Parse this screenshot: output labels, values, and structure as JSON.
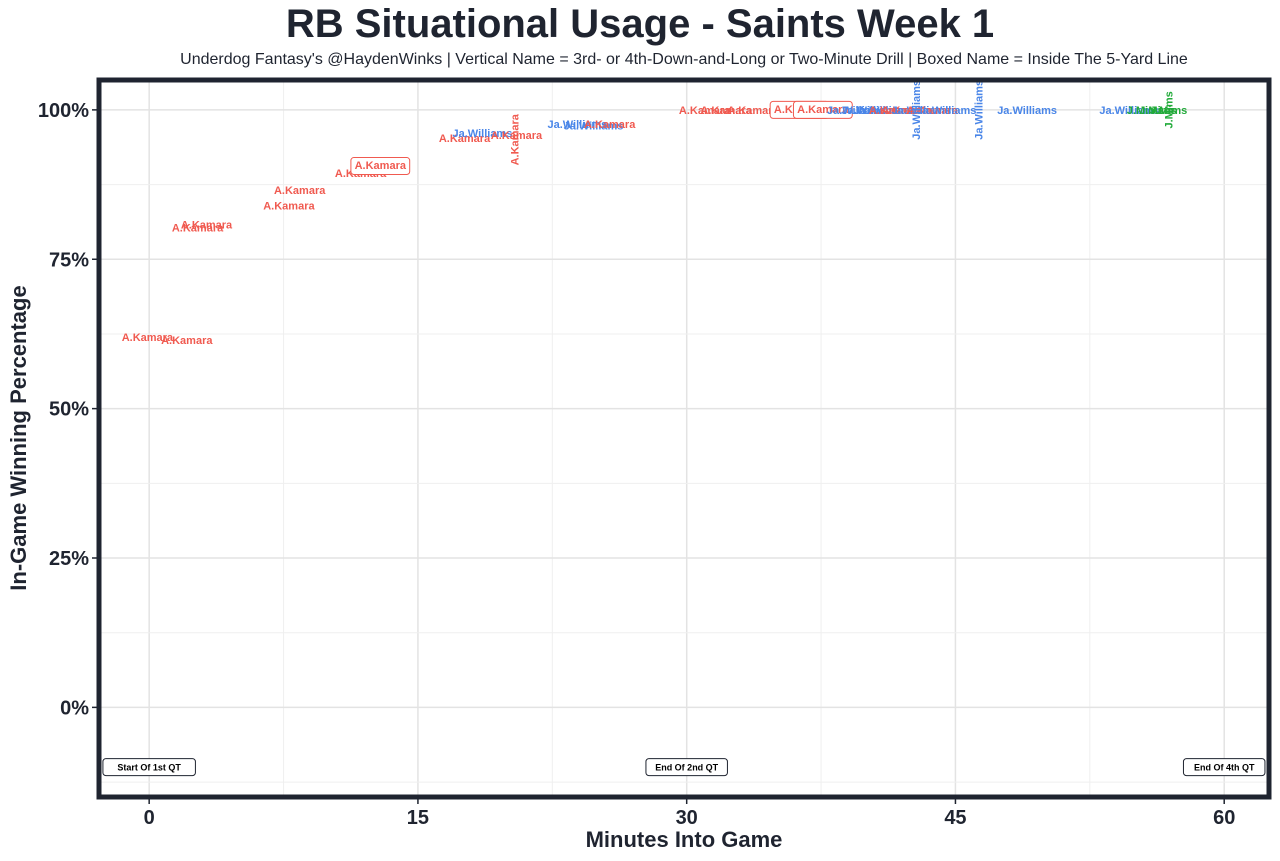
{
  "chart_data": {
    "type": "scatter",
    "title": "RB Situational Usage - Saints Week 1",
    "subtitle": "Underdog Fantasy's @HaydenWinks | Vertical Name = 3rd- or 4th-Down-and-Long or Two-Minute Drill | Boxed Name = Inside The 5-Yard Line",
    "xlabel": "Minutes Into Game",
    "ylabel": "In-Game Winning Percentage",
    "xlim": [
      -2.8,
      62.5
    ],
    "ylim": [
      -15,
      105
    ],
    "x_ticks": [
      0,
      15,
      30,
      45,
      60
    ],
    "x_tick_labels": [
      "0",
      "15",
      "30",
      "45",
      "60"
    ],
    "y_ticks": [
      0,
      25,
      50,
      75,
      100
    ],
    "y_tick_labels": [
      "0%",
      "25%",
      "50%",
      "75%",
      "100%"
    ],
    "grid": true,
    "colors": {
      "A.Kamara": "#f05a50",
      "Ja.Williams": "#4a86e8",
      "J.Mims": "#22aa3a"
    },
    "quarter_markers": [
      {
        "x": 0,
        "y": -10,
        "label": "Start Of 1st QT"
      },
      {
        "x": 30,
        "y": -10,
        "label": "End Of 2nd QT"
      },
      {
        "x": 60,
        "y": -10,
        "label": "End Of 4th QT"
      }
    ],
    "points": [
      {
        "x": -0.1,
        "y": 62,
        "label": "A.Kamara"
      },
      {
        "x": 2.1,
        "y": 61.5,
        "label": "A.Kamara"
      },
      {
        "x": 3.2,
        "y": 80.8,
        "label": "A.Kamara"
      },
      {
        "x": 2.7,
        "y": 80.3,
        "label": "A.Kamara"
      },
      {
        "x": 7.8,
        "y": 84,
        "label": "A.Kamara"
      },
      {
        "x": 8.4,
        "y": 86.6,
        "label": "A.Kamara"
      },
      {
        "x": 11.8,
        "y": 89.4,
        "label": "A.Kamara"
      },
      {
        "x": 12.9,
        "y": 90.6,
        "label": "A.Kamara",
        "boxed": true
      },
      {
        "x": 17.6,
        "y": 95.3,
        "label": "A.Kamara"
      },
      {
        "x": 18.6,
        "y": 96.1,
        "label": "Ja.Williams"
      },
      {
        "x": 20.5,
        "y": 95.8,
        "label": "A.Kamara"
      },
      {
        "x": 20.4,
        "y": 95,
        "label": "A.Kamara",
        "vertical": true
      },
      {
        "x": 23.9,
        "y": 97.6,
        "label": "Ja.Williams"
      },
      {
        "x": 24.8,
        "y": 97.4,
        "label": "Ja.Williams"
      },
      {
        "x": 25.7,
        "y": 97.6,
        "label": "A.Kamara"
      },
      {
        "x": 31.0,
        "y": 100,
        "label": "A.Kamara"
      },
      {
        "x": 32.2,
        "y": 100,
        "label": "A.Kamara"
      },
      {
        "x": 33.7,
        "y": 100,
        "label": "A.Kamara"
      },
      {
        "x": 36.3,
        "y": 100,
        "label": "A.Kamara",
        "boxed": true
      },
      {
        "x": 37.6,
        "y": 100,
        "label": "A.Kamara",
        "boxed": true
      },
      {
        "x": 39.5,
        "y": 100,
        "label": "Ja.Williams"
      },
      {
        "x": 40.3,
        "y": 100,
        "label": "Ja.Williams"
      },
      {
        "x": 41.0,
        "y": 100,
        "label": "Ja.Williams"
      },
      {
        "x": 41.6,
        "y": 100,
        "label": "A.Kamara"
      },
      {
        "x": 42.3,
        "y": 100,
        "label": "A.Kamara"
      },
      {
        "x": 43.1,
        "y": 100,
        "label": "Ja.Williams"
      },
      {
        "x": 43.7,
        "y": 100,
        "label": "A.Kamara"
      },
      {
        "x": 44.5,
        "y": 100,
        "label": "Ja.Williams"
      },
      {
        "x": 42.8,
        "y": 100,
        "label": "Ja.Williams",
        "vertical": true
      },
      {
        "x": 46.3,
        "y": 100,
        "label": "Ja.Williams",
        "vertical": true
      },
      {
        "x": 49.0,
        "y": 100,
        "label": "Ja.Williams"
      },
      {
        "x": 54.7,
        "y": 100,
        "label": "Ja.Williams"
      },
      {
        "x": 55.6,
        "y": 100,
        "label": "J.Mims"
      },
      {
        "x": 56.3,
        "y": 100,
        "label": "J.Mims"
      },
      {
        "x": 56.9,
        "y": 100,
        "label": "J.Mims"
      },
      {
        "x": 56.9,
        "y": 100,
        "label": "J.Mims",
        "vertical": true
      }
    ]
  }
}
